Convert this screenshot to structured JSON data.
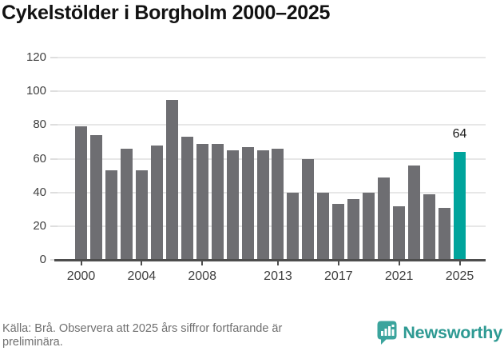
{
  "title": "Cykelstölder i Borgholm 2000–2025",
  "chart_data": {
    "type": "bar",
    "title": "Cykelstölder i Borgholm 2000–2025",
    "categories": [
      "2000",
      "2001",
      "2002",
      "2003",
      "2004",
      "2005",
      "2006",
      "2007",
      "2008",
      "2009",
      "2010",
      "2011",
      "2012",
      "2013",
      "2014",
      "2015",
      "2016",
      "2017",
      "2018",
      "2019",
      "2020",
      "2021",
      "2022",
      "2023",
      "2024",
      "2025"
    ],
    "values": [
      79,
      74,
      53,
      66,
      53,
      68,
      95,
      73,
      69,
      69,
      65,
      67,
      65,
      66,
      40,
      60,
      40,
      33,
      36,
      40,
      49,
      32,
      56,
      39,
      31,
      64
    ],
    "ylim": [
      0,
      120
    ],
    "yticks": [
      0,
      20,
      40,
      60,
      80,
      100,
      120
    ],
    "x_ticks": [
      {
        "index": 0,
        "label": "2000"
      },
      {
        "index": 4,
        "label": "2004"
      },
      {
        "index": 8,
        "label": "2008"
      },
      {
        "index": 13,
        "label": "2013"
      },
      {
        "index": 17,
        "label": "2017"
      },
      {
        "index": 21,
        "label": "2021"
      },
      {
        "index": 25,
        "label": "2025"
      }
    ],
    "bar_color": "#6e6e72",
    "grid": true,
    "legend": false,
    "highlight": {
      "index": 25,
      "label": "64",
      "color": "#00a49c"
    }
  },
  "source": {
    "line1": "Källa: Brå. Observera att 2025 års siffror fortfarande är",
    "line2": "preliminära."
  },
  "brand": {
    "name": "Newsworthy",
    "icon": "newsworthy-speech-bubble-chart-icon",
    "icon_color": "#3ba49d",
    "text_color": "#2e9a93"
  }
}
